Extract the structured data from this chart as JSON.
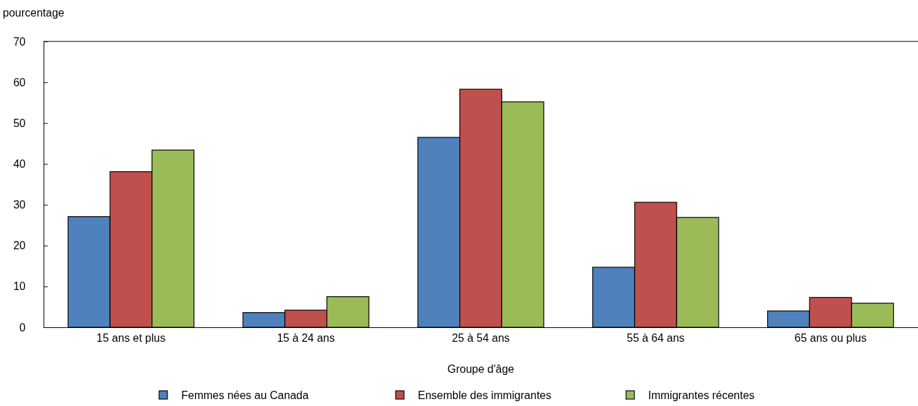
{
  "chart_data": {
    "type": "bar",
    "ylabel": "pourcentage",
    "xlabel": "Groupe d'âge",
    "categories": [
      "15 ans et plus",
      "15 à 24 ans",
      "25 à 54 ans",
      "55 à 64 ans",
      "65 ans ou plus"
    ],
    "series": [
      {
        "name": "Femmes nées au Canada",
        "color": "#4f81bd",
        "values": [
          27.1,
          3.6,
          46.5,
          14.7,
          4.0
        ]
      },
      {
        "name": "Ensemble des immigrantes",
        "color": "#c0504d",
        "values": [
          38.1,
          4.2,
          58.3,
          30.6,
          7.3
        ]
      },
      {
        "name": "Immigrantes récentes",
        "color": "#9bbb59",
        "values": [
          43.4,
          7.5,
          55.2,
          26.9,
          5.9
        ]
      }
    ],
    "ylim": [
      0,
      70
    ],
    "yticks": [
      0,
      10,
      20,
      30,
      40,
      50,
      60,
      70
    ],
    "grid": false,
    "legend": "bottom"
  }
}
